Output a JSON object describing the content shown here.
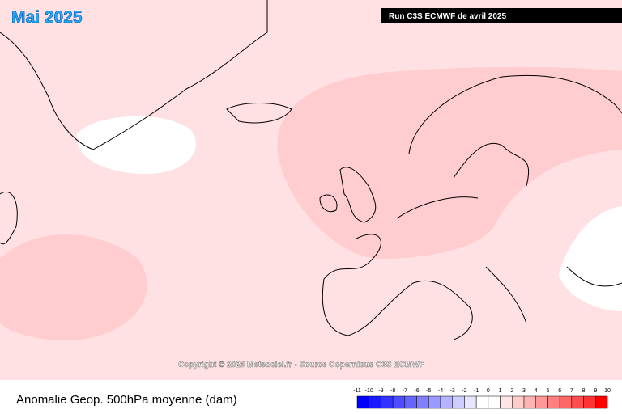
{
  "header": {
    "title": "Mai 2025",
    "run": "Run C3S ECMWF de avril 2025"
  },
  "copyright": "Copyright © 2025 Meteociel.fr - Source Copernicus C3S ECMWF",
  "caption": "Anomalie Geop. 500hPa moyenne (dam)",
  "legend": {
    "labels": [
      -11,
      -10,
      -9,
      -8,
      -7,
      -6,
      -5,
      -4,
      -3,
      -2,
      -1,
      0,
      1,
      2,
      3,
      4,
      5,
      6,
      7,
      8,
      9,
      10
    ],
    "colors": [
      "#0000ff",
      "#1a1aff",
      "#3333ff",
      "#4d4dff",
      "#6666ff",
      "#8080ff",
      "#9999ff",
      "#b3b3ff",
      "#ccccff",
      "#e6e6ff",
      "#ffffff",
      "#ffffff",
      "#ffe6e6",
      "#ffcccc",
      "#ffb3b3",
      "#ff9999",
      "#ff8080",
      "#ff6666",
      "#ff4d4d",
      "#ff3333",
      "#ff0000"
    ]
  }
}
